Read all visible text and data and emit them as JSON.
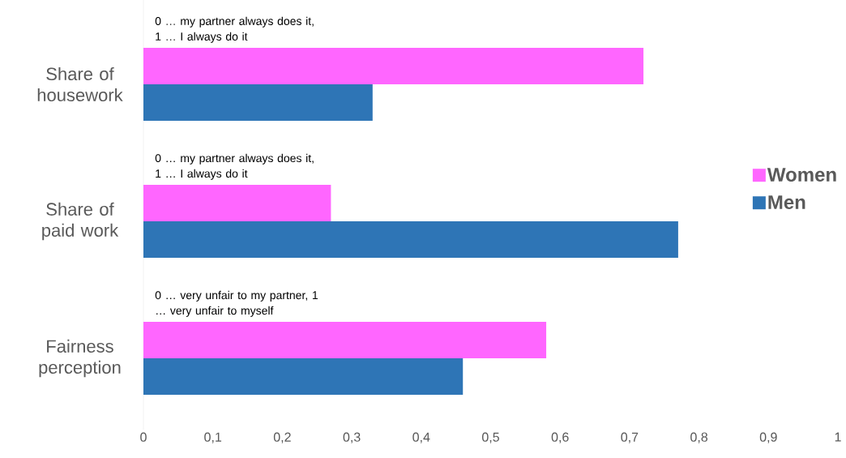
{
  "chart_data": {
    "type": "bar",
    "orientation": "horizontal",
    "categories": [
      "Share of housework",
      "Share of paid work",
      "Fairness perception"
    ],
    "series": [
      {
        "name": "Women",
        "color": "#ff66ff",
        "values": [
          0.72,
          0.27,
          0.58
        ]
      },
      {
        "name": "Men",
        "color": "#2e75b6",
        "values": [
          0.33,
          0.77,
          0.46
        ]
      }
    ],
    "xlim": [
      0,
      1
    ],
    "xticks": [
      0,
      {
        "value": 0.1,
        "label": "0,1"
      },
      {
        "value": 0.2,
        "label": "0,2"
      },
      {
        "value": 0.3,
        "label": "0,3"
      },
      {
        "value": 0.4,
        "label": "0,4"
      },
      {
        "value": 0.5,
        "label": "0,5"
      },
      {
        "value": 0.6,
        "label": "0,6"
      },
      {
        "value": 0.7,
        "label": "0,7"
      },
      {
        "value": 0.8,
        "label": "0,8"
      },
      {
        "value": 0.9,
        "label": "0,9"
      },
      1
    ],
    "annotations": [
      "0 … my partner always does it, 1 … I always do it",
      "0 … my partner always does it, 1 … I always do it",
      "0 … very unfair to my partner, 1 … very unfair to myself"
    ],
    "grid": false,
    "legend": "right"
  }
}
